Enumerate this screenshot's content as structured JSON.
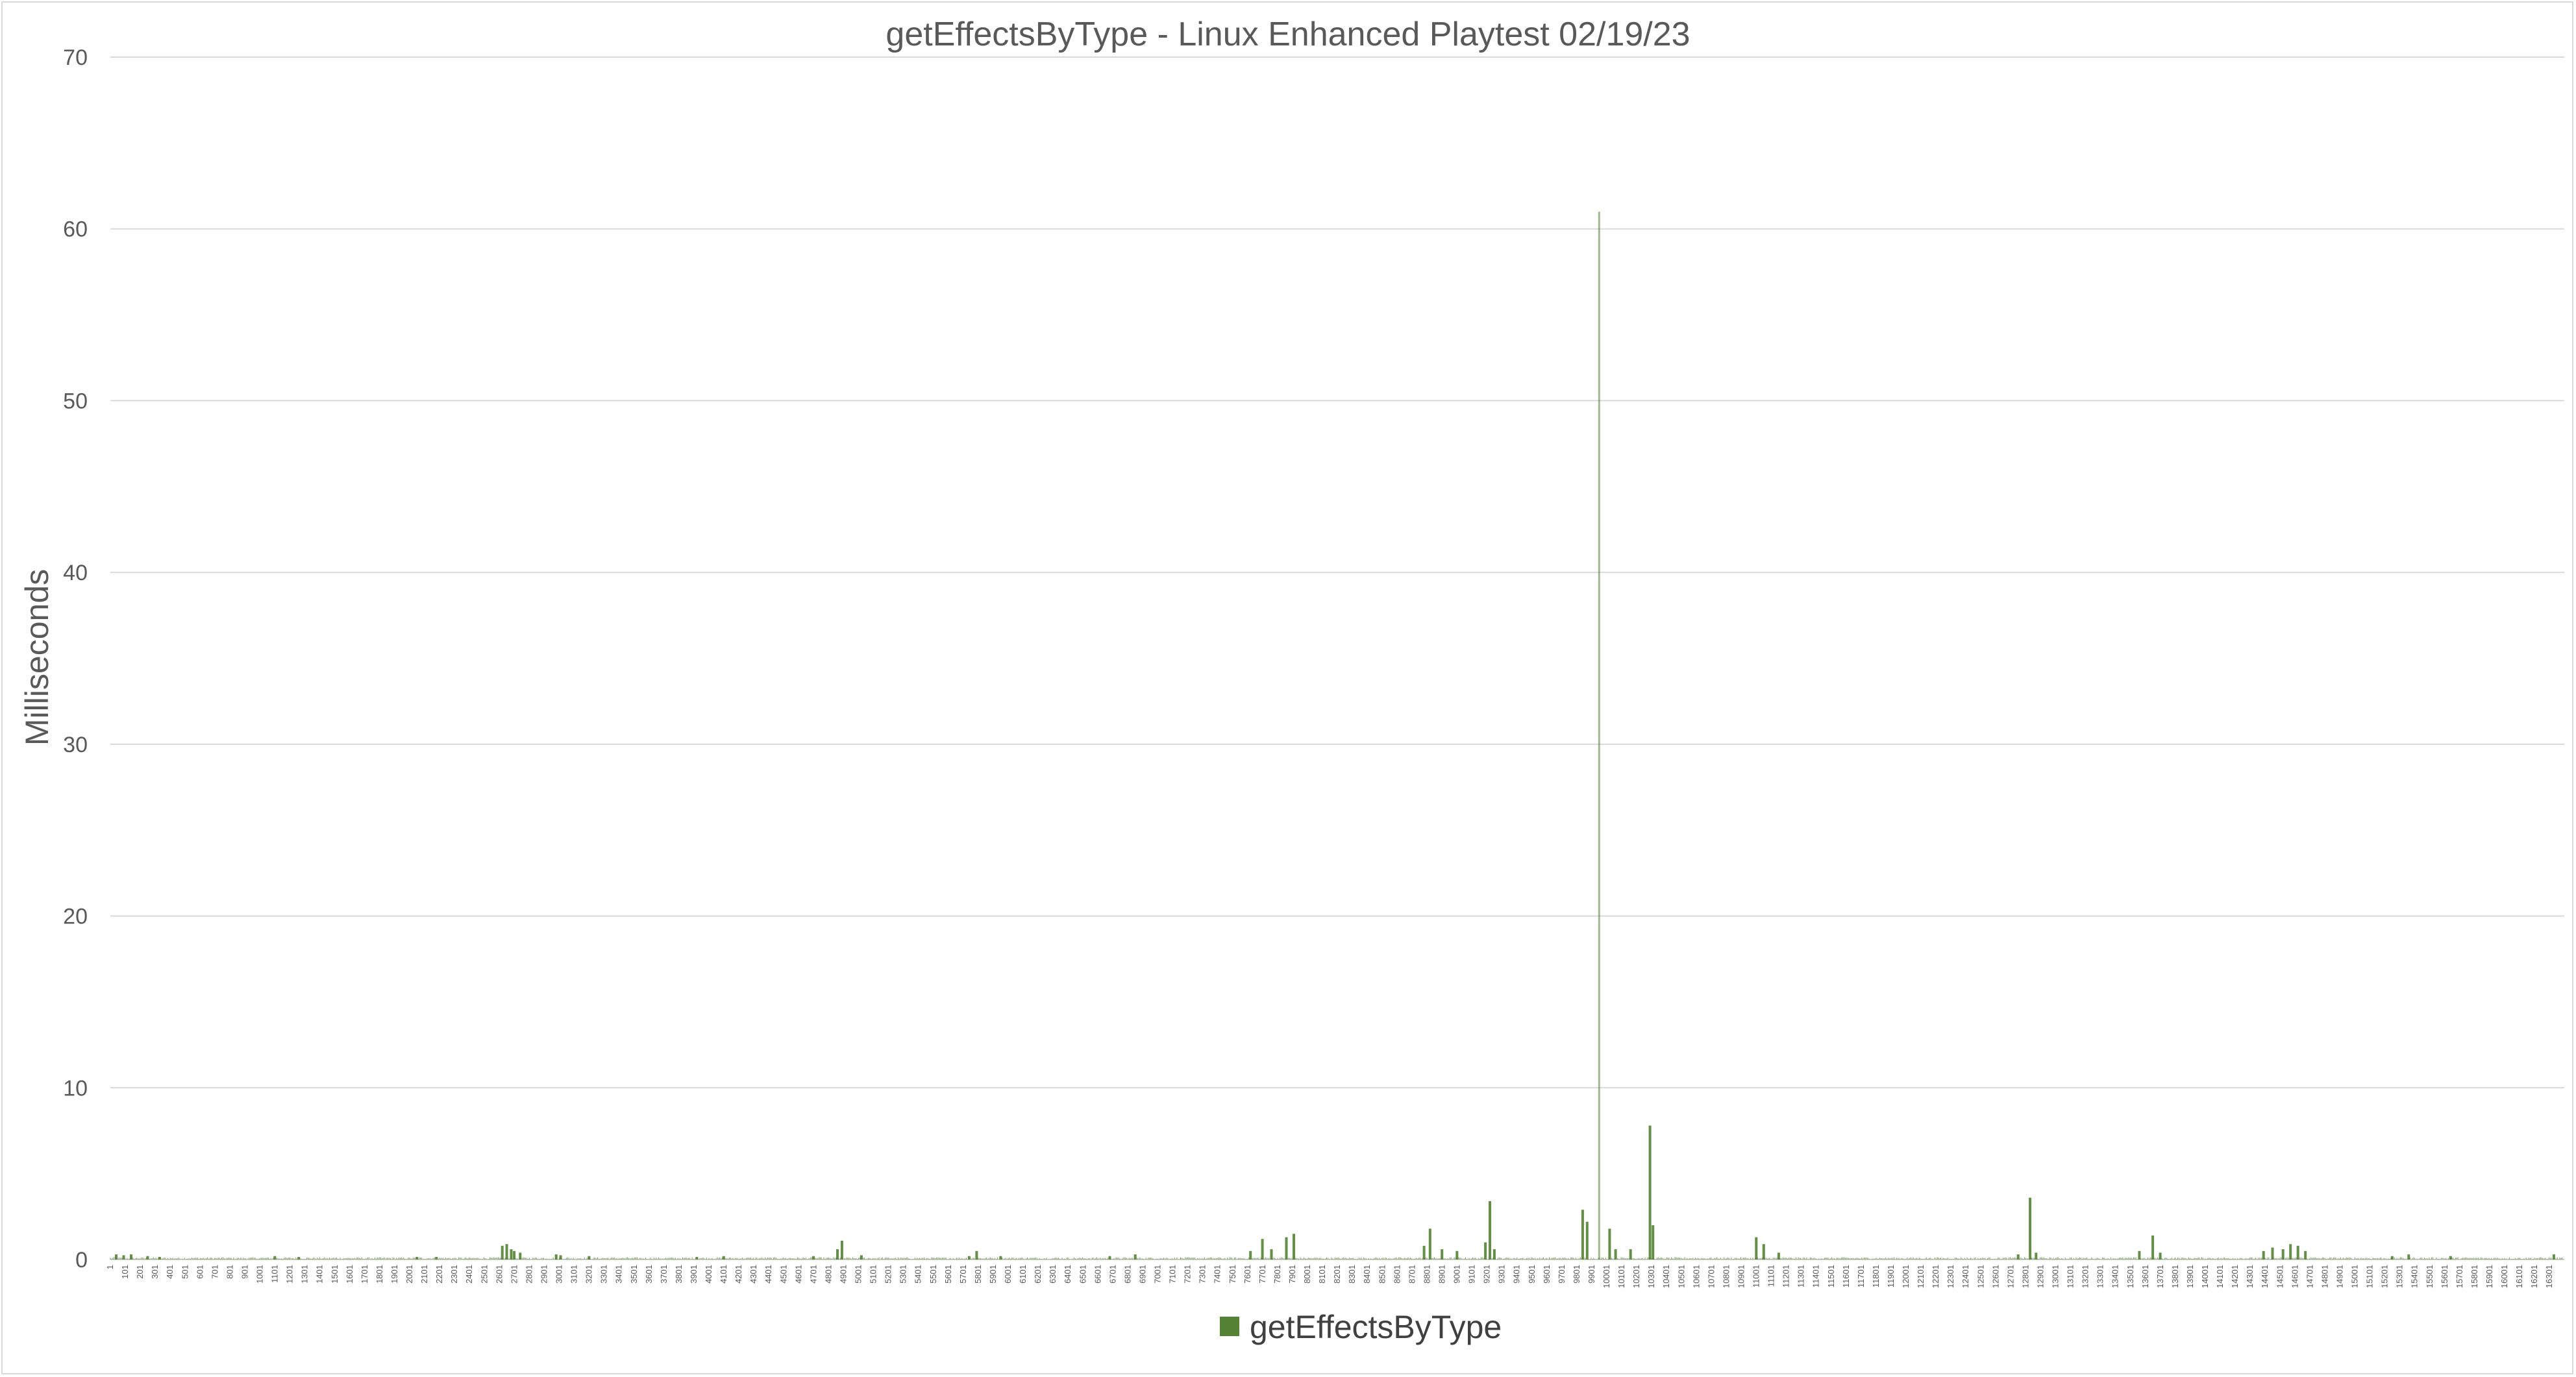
{
  "chart_data": {
    "type": "bar",
    "title": "getEffectsByType - Linux Enhanced Playtest 02/19/23",
    "xlabel": "",
    "ylabel": "Milliseconds",
    "ylim": [
      0,
      70
    ],
    "yticks": [
      0,
      10,
      20,
      30,
      40,
      50,
      60,
      70
    ],
    "x_range": [
      1,
      16400
    ],
    "x_tick_step": 100,
    "grid": true,
    "legend_position": "bottom",
    "colors": {
      "series": "#548235",
      "grid": "#d9d9d9",
      "text": "#595959"
    },
    "series": [
      {
        "name": "getEffectsByType",
        "baseline_noise_ms": 0.08,
        "points": [
          [
            40,
            0.3
          ],
          [
            90,
            0.25
          ],
          [
            140,
            0.3
          ],
          [
            250,
            0.2
          ],
          [
            330,
            0.15
          ],
          [
            1100,
            0.2
          ],
          [
            1260,
            0.15
          ],
          [
            2050,
            0.15
          ],
          [
            2180,
            0.15
          ],
          [
            2620,
            0.8
          ],
          [
            2650,
            0.9
          ],
          [
            2680,
            0.6
          ],
          [
            2700,
            0.5
          ],
          [
            2740,
            0.4
          ],
          [
            2980,
            0.3
          ],
          [
            3010,
            0.25
          ],
          [
            3200,
            0.2
          ],
          [
            3920,
            0.15
          ],
          [
            4100,
            0.2
          ],
          [
            4700,
            0.2
          ],
          [
            4860,
            0.6
          ],
          [
            4890,
            1.1
          ],
          [
            5020,
            0.25
          ],
          [
            5740,
            0.2
          ],
          [
            5790,
            0.5
          ],
          [
            5950,
            0.2
          ],
          [
            6680,
            0.2
          ],
          [
            6850,
            0.3
          ],
          [
            7620,
            0.5
          ],
          [
            7700,
            1.2
          ],
          [
            7760,
            0.6
          ],
          [
            7860,
            1.3
          ],
          [
            7910,
            1.5
          ],
          [
            8780,
            0.8
          ],
          [
            8820,
            1.8
          ],
          [
            8900,
            0.6
          ],
          [
            9000,
            0.5
          ],
          [
            9190,
            1.0
          ],
          [
            9220,
            3.4
          ],
          [
            9250,
            0.6
          ],
          [
            9840,
            2.9
          ],
          [
            9870,
            2.2
          ],
          [
            9950,
            61.0
          ],
          [
            10020,
            1.8
          ],
          [
            10060,
            0.6
          ],
          [
            10160,
            0.6
          ],
          [
            10290,
            7.8
          ],
          [
            10310,
            2.0
          ],
          [
            11000,
            1.3
          ],
          [
            11050,
            0.9
          ],
          [
            11150,
            0.4
          ],
          [
            12750,
            0.3
          ],
          [
            12830,
            3.6
          ],
          [
            12870,
            0.4
          ],
          [
            13560,
            0.5
          ],
          [
            13650,
            1.4
          ],
          [
            13700,
            0.4
          ],
          [
            14390,
            0.5
          ],
          [
            14450,
            0.7
          ],
          [
            14520,
            0.6
          ],
          [
            14570,
            0.9
          ],
          [
            14620,
            0.8
          ],
          [
            14670,
            0.5
          ],
          [
            15250,
            0.2
          ],
          [
            15360,
            0.3
          ],
          [
            15640,
            0.2
          ],
          [
            16330,
            0.3
          ]
        ]
      }
    ]
  }
}
